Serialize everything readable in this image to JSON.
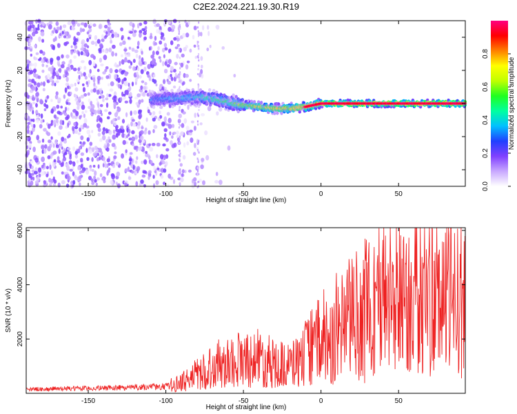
{
  "title": "C2E2.2024.221.19.30.R19",
  "chart_data": [
    {
      "type": "heatmap",
      "xlabel": "Height of straight line (km)",
      "ylabel": "Frequency (Hz)",
      "xlim": [
        -190,
        93
      ],
      "ylim": [
        -50,
        50
      ],
      "xticks": [
        -150,
        -100,
        -50,
        0,
        50
      ],
      "xtick_labels": [
        "-150",
        "-100",
        "-50",
        "0",
        "50"
      ],
      "yticks": [
        -40,
        -20,
        0,
        20,
        40
      ],
      "ytick_labels": [
        "-40",
        "-20",
        "0",
        "20",
        "40"
      ],
      "ridge": {
        "x": [
          -110,
          -100,
          -90,
          -80,
          -70,
          -60,
          -50,
          -40,
          -30,
          -20,
          -10,
          0,
          10,
          20,
          40,
          60,
          80,
          93
        ],
        "frequency": [
          2,
          3,
          3,
          4,
          3,
          1,
          -1,
          -2,
          -3,
          -3,
          -2,
          0,
          0,
          0,
          0,
          0,
          0,
          0
        ],
        "amplitude": [
          0.35,
          0.4,
          0.45,
          0.5,
          0.55,
          0.6,
          0.7,
          0.75,
          0.8,
          0.85,
          0.9,
          0.95,
          0.97,
          0.98,
          0.98,
          0.98,
          0.98,
          0.98
        ]
      },
      "noise_region": {
        "x_start": -190,
        "x_end": -80,
        "amplitude": [
          0.02,
          0.2
        ]
      }
    },
    {
      "type": "colorbar",
      "label": "Normalized spectral amplitude",
      "range": [
        0,
        1
      ],
      "ticks": [
        0.0,
        0.2,
        0.4,
        0.6,
        0.8
      ],
      "tick_labels": [
        "0.0",
        "0.2",
        "0.4",
        "0.6",
        "0.8"
      ],
      "colors": [
        "#ffffff",
        "#c8a8ff",
        "#8040ff",
        "#2040ff",
        "#00c0ff",
        "#00ffa0",
        "#20ff20",
        "#c0ff00",
        "#ffff00",
        "#ff8000",
        "#ff0000",
        "#ff0080"
      ]
    },
    {
      "type": "line",
      "xlabel": "Height of straight line (km)",
      "ylabel": "SNR (10 * v/v)",
      "xlim": [
        -190,
        93
      ],
      "ylim": [
        0,
        6100
      ],
      "xticks": [
        -150,
        -100,
        -50,
        0,
        50
      ],
      "xtick_labels": [
        "-150",
        "-100",
        "-50",
        "0",
        "50"
      ],
      "yticks": [
        2000,
        4000,
        6000
      ],
      "ytick_labels": [
        "2000",
        "4000",
        "6000"
      ],
      "color": "#ee2222",
      "series": [
        {
          "name": "SNR envelope",
          "x": [
            -190,
            -150,
            -100,
            -90,
            -80,
            -70,
            -60,
            -50,
            -40,
            -30,
            -20,
            -10,
            0,
            10,
            20,
            30,
            40,
            50,
            60,
            70,
            80,
            93
          ],
          "y": [
            150,
            180,
            250,
            400,
            700,
            1000,
            1200,
            1300,
            1300,
            1100,
            1000,
            1500,
            2000,
            2400,
            2800,
            3200,
            3500,
            3700,
            3800,
            3700,
            3600,
            3400
          ]
        }
      ]
    }
  ]
}
